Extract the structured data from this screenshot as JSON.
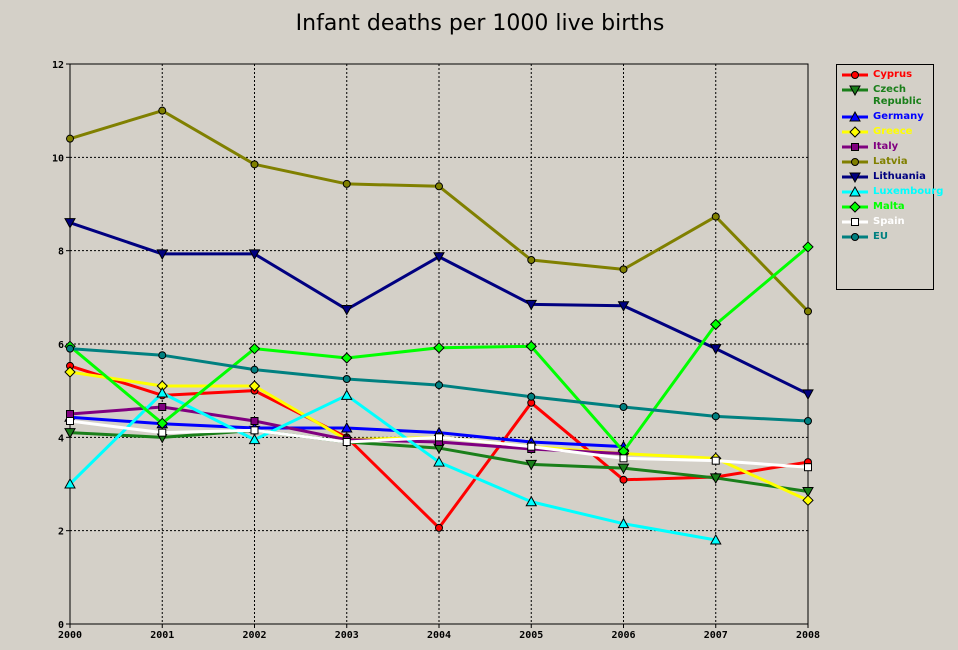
{
  "chart_data": {
    "type": "line",
    "title": "Infant deaths per 1000 live births",
    "x": [
      2000,
      2001,
      2002,
      2003,
      2004,
      2005,
      2006,
      2007,
      2008
    ],
    "xlim": [
      2000,
      2008
    ],
    "xticks": [
      2000,
      2001,
      2002,
      2003,
      2004,
      2005,
      2006,
      2007,
      2008
    ],
    "ylim": [
      0,
      12
    ],
    "yticks": [
      0,
      2,
      4,
      6,
      8,
      10,
      12
    ],
    "grid": true,
    "series": [
      {
        "name": "Cyprus",
        "color": "#ff0000",
        "marker": "circle",
        "values": [
          5.53,
          4.9,
          5.0,
          4.0,
          2.06,
          4.74,
          3.09,
          3.15,
          3.47
        ]
      },
      {
        "name": "Czech Republic",
        "color": "#1a7f1a",
        "marker": "down",
        "values": [
          4.1,
          4.0,
          4.15,
          3.9,
          3.77,
          3.42,
          3.34,
          3.13,
          2.84
        ]
      },
      {
        "name": "Germany",
        "color": "#0000ff",
        "marker": "up",
        "values": [
          4.43,
          4.29,
          4.2,
          4.2,
          4.1,
          3.9,
          3.8,
          null,
          null
        ]
      },
      {
        "name": "Greece",
        "color": "#ffff00",
        "marker": "diamond",
        "values": [
          5.4,
          5.1,
          5.1,
          3.95,
          4.0,
          3.8,
          3.65,
          3.55,
          2.65
        ]
      },
      {
        "name": "Italy",
        "color": "#800080",
        "marker": "square",
        "values": [
          4.5,
          4.65,
          4.35,
          3.95,
          3.9,
          3.75,
          3.65,
          null,
          null
        ]
      },
      {
        "name": "Latvia",
        "color": "#808000",
        "marker": "circle",
        "values": [
          10.4,
          11.0,
          9.85,
          9.43,
          9.38,
          7.8,
          7.6,
          8.73,
          6.7
        ]
      },
      {
        "name": "Lithuania",
        "color": "#000080",
        "marker": "down",
        "values": [
          8.6,
          7.93,
          7.93,
          6.74,
          7.87,
          6.85,
          6.82,
          5.9,
          4.93
        ]
      },
      {
        "name": "Luxembourg",
        "color": "#00ffff",
        "marker": "up",
        "values": [
          3.0,
          4.95,
          3.95,
          4.9,
          3.47,
          2.62,
          2.15,
          1.8,
          null
        ]
      },
      {
        "name": "Malta",
        "color": "#00ff00",
        "marker": "diamond",
        "values": [
          5.95,
          4.3,
          5.9,
          5.7,
          5.92,
          5.95,
          3.7,
          6.42,
          8.08
        ]
      },
      {
        "name": "Spain",
        "color": "#ffffff",
        "marker": "square",
        "values": [
          4.35,
          4.1,
          4.15,
          3.9,
          4.0,
          3.8,
          3.55,
          3.5,
          3.36
        ]
      },
      {
        "name": "EU",
        "color": "#008080",
        "marker": "circle",
        "values": [
          5.9,
          5.76,
          5.45,
          5.25,
          5.12,
          4.87,
          4.65,
          4.45,
          4.35
        ]
      }
    ]
  }
}
